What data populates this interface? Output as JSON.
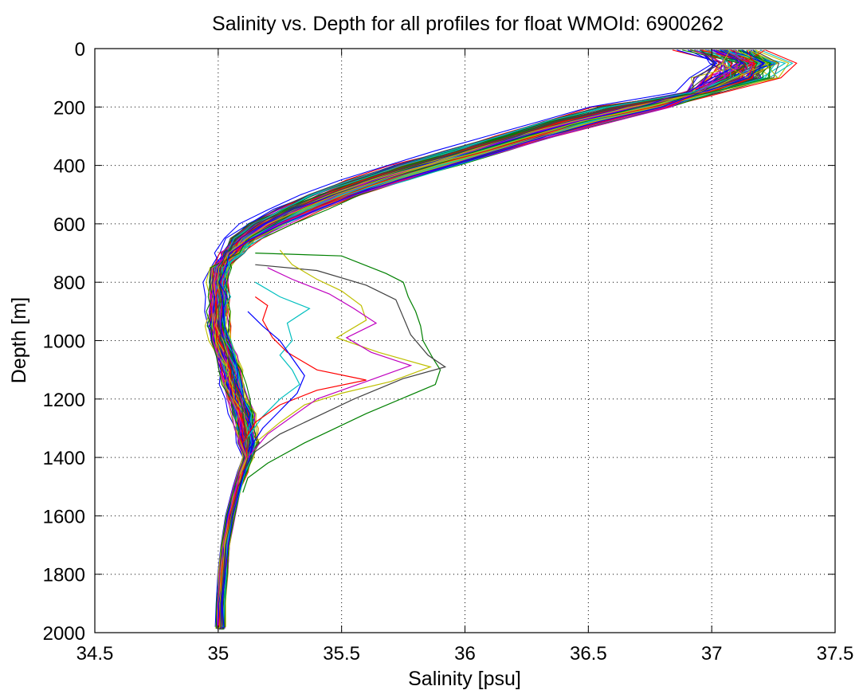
{
  "chart_data": {
    "type": "line",
    "title": "Salinity vs. Depth for all profiles for float WMOId: 6900262",
    "xlabel": "Salinity [psu]",
    "ylabel": "Depth [m]",
    "xlim": [
      34.5,
      37.5
    ],
    "ylim": [
      0,
      2000
    ],
    "y_reversed": true,
    "grid": true,
    "legend": "none",
    "x_ticks": [
      "34.5",
      "35",
      "35.5",
      "36",
      "36.5",
      "37",
      "37.5"
    ],
    "y_ticks": [
      "0",
      "200",
      "400",
      "600",
      "800",
      "1000",
      "1200",
      "1400",
      "1600",
      "1800",
      "2000"
    ],
    "color_cycle": [
      "#0000ff",
      "#008000",
      "#ff0000",
      "#00bfbf",
      "#bf00bf",
      "#bfbf00",
      "#404040"
    ],
    "profile_count": 120,
    "depth_levels": [
      5,
      50,
      100,
      150,
      200,
      250,
      300,
      350,
      400,
      450,
      500,
      550,
      600,
      650,
      700,
      750,
      800,
      850,
      900,
      950,
      1000,
      1050,
      1100,
      1150,
      1200,
      1250,
      1300,
      1350,
      1400,
      1450,
      1500,
      1600,
      1700,
      1800,
      1900,
      1975
    ],
    "mean_profile_salinity": [
      37.05,
      37.15,
      37.1,
      36.95,
      36.7,
      36.45,
      36.25,
      36.05,
      35.85,
      35.65,
      35.47,
      35.33,
      35.2,
      35.1,
      35.05,
      35.01,
      35.0,
      35.0,
      35.0,
      35.0,
      35.01,
      35.03,
      35.05,
      35.06,
      35.08,
      35.1,
      35.11,
      35.12,
      35.12,
      35.1,
      35.08,
      35.05,
      35.03,
      35.02,
      35.01,
      35.01
    ],
    "series": [
      {
        "label_ref": "anomalous-green",
        "color": "#008000",
        "points": [
          [
            35.15,
            700
          ],
          [
            35.5,
            710
          ],
          [
            35.68,
            770
          ],
          [
            35.75,
            800
          ],
          [
            35.77,
            850
          ],
          [
            35.8,
            900
          ],
          [
            35.82,
            950
          ],
          [
            35.83,
            1000
          ],
          [
            35.87,
            1060
          ],
          [
            35.9,
            1100
          ],
          [
            35.88,
            1150
          ],
          [
            35.6,
            1250
          ],
          [
            35.35,
            1350
          ],
          [
            35.2,
            1420
          ],
          [
            35.12,
            1470
          ],
          [
            35.1,
            1520
          ]
        ]
      },
      {
        "label_ref": "anomalous-darkgray",
        "color": "#404040",
        "points": [
          [
            35.15,
            740
          ],
          [
            35.4,
            760
          ],
          [
            35.6,
            810
          ],
          [
            35.72,
            860
          ],
          [
            35.75,
            920
          ],
          [
            35.78,
            980
          ],
          [
            35.85,
            1050
          ],
          [
            35.92,
            1090
          ],
          [
            35.75,
            1130
          ],
          [
            35.55,
            1200
          ],
          [
            35.4,
            1260
          ],
          [
            35.25,
            1320
          ],
          [
            35.15,
            1380
          ],
          [
            35.1,
            1450
          ]
        ]
      },
      {
        "label_ref": "anomalous-yellow",
        "color": "#bfbf00",
        "points": [
          [
            35.25,
            690
          ],
          [
            35.3,
            740
          ],
          [
            35.4,
            790
          ],
          [
            35.5,
            830
          ],
          [
            35.58,
            880
          ],
          [
            35.6,
            930
          ],
          [
            35.48,
            990
          ],
          [
            35.65,
            1040
          ],
          [
            35.86,
            1090
          ],
          [
            35.7,
            1140
          ],
          [
            35.5,
            1180
          ],
          [
            35.35,
            1220
          ],
          [
            35.25,
            1280
          ],
          [
            35.15,
            1350
          ]
        ]
      },
      {
        "label_ref": "anomalous-magenta",
        "color": "#bf00bf",
        "points": [
          [
            35.2,
            750
          ],
          [
            35.3,
            790
          ],
          [
            35.45,
            840
          ],
          [
            35.55,
            890
          ],
          [
            35.64,
            940
          ],
          [
            35.52,
            990
          ],
          [
            35.62,
            1040
          ],
          [
            35.78,
            1085
          ],
          [
            35.6,
            1140
          ],
          [
            35.4,
            1200
          ],
          [
            35.3,
            1260
          ],
          [
            35.2,
            1320
          ],
          [
            35.12,
            1400
          ]
        ]
      },
      {
        "label_ref": "anomalous-cyan",
        "color": "#00bfbf",
        "points": [
          [
            35.15,
            800
          ],
          [
            35.25,
            850
          ],
          [
            35.37,
            890
          ],
          [
            35.28,
            940
          ],
          [
            35.3,
            1000
          ],
          [
            35.25,
            1050
          ],
          [
            35.3,
            1100
          ],
          [
            35.33,
            1150
          ],
          [
            35.25,
            1200
          ],
          [
            35.18,
            1260
          ],
          [
            35.12,
            1330
          ]
        ]
      },
      {
        "label_ref": "anomalous-red",
        "color": "#ff0000",
        "points": [
          [
            35.15,
            850
          ],
          [
            35.2,
            880
          ],
          [
            35.18,
            930
          ],
          [
            35.22,
            990
          ],
          [
            35.28,
            1040
          ],
          [
            35.4,
            1100
          ],
          [
            35.6,
            1135
          ],
          [
            35.4,
            1170
          ],
          [
            35.25,
            1220
          ],
          [
            35.15,
            1280
          ],
          [
            35.1,
            1350
          ]
        ]
      },
      {
        "label_ref": "anomalous-blue",
        "color": "#0000ff",
        "points": [
          [
            35.12,
            900
          ],
          [
            35.18,
            950
          ],
          [
            35.25,
            1000
          ],
          [
            35.3,
            1060
          ],
          [
            35.35,
            1120
          ],
          [
            35.32,
            1180
          ],
          [
            35.25,
            1240
          ],
          [
            35.18,
            1300
          ],
          [
            35.12,
            1380
          ]
        ]
      }
    ]
  }
}
